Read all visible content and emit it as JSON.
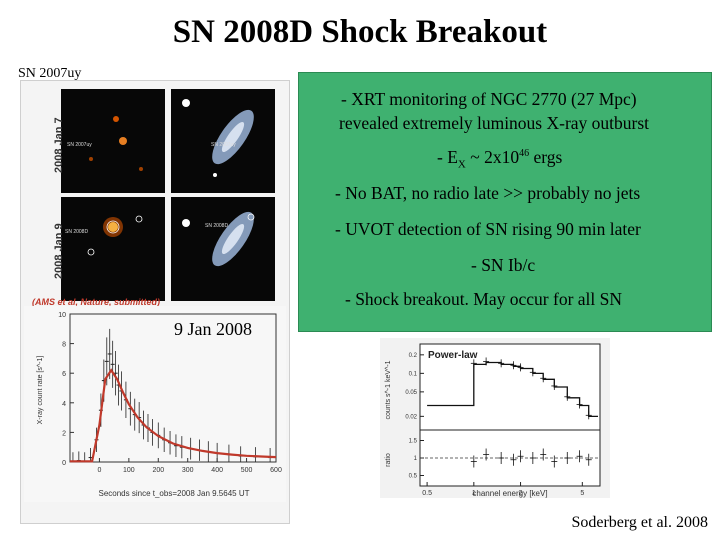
{
  "slide": {
    "title": "SN 2008D Shock Breakout",
    "sn_label": "SN 2007uy",
    "date_label": "9 Jan 2008",
    "citation": "Soderberg et al. 2008"
  },
  "images": {
    "row1_date": "2008 Jan 7",
    "row2_date": "2008 Jan 9",
    "row1_left_label": "SN 2007uy",
    "row1_right_label": "SN 2007uy",
    "row2_left_label": "SN 2008D",
    "row2_right_label": "SN 2008D",
    "credit": "(AMS et al, Nature, submitted)"
  },
  "bullets": {
    "b1_line1": "- XRT monitoring of NGC 2770 (27 Mpc)",
    "b1_line2": "revealed extremely luminous X-ray outburst",
    "b2_prefix": "- E",
    "b2_sub": "X",
    "b2_mid": " ~ 2x10",
    "b2_sup": "46",
    "b2_suffix": " ergs",
    "b3": "- No BAT, no radio late >> probably no jets",
    "b4": "- UVOT detection of SN rising 90 min later",
    "b5": "- SN Ib/c",
    "b6": "- Shock breakout.  May occur for all SN"
  },
  "chart_data": [
    {
      "type": "line",
      "xlabel": "Seconds since t_obs=2008 Jan 9.5645 UT",
      "ylabel": "X-ray count rate [s^-1]",
      "xlim": [
        -100,
        600
      ],
      "ylim": [
        0,
        10
      ],
      "xticks": [
        0,
        100,
        200,
        300,
        400,
        500,
        600
      ],
      "yticks": [
        0,
        2,
        4,
        6,
        8,
        10
      ],
      "colors": {
        "data": "#222222",
        "model": "#c0392b"
      },
      "series": [
        {
          "points": [
            [
              -90,
              0.05
            ],
            [
              -70,
              0.1
            ],
            [
              -50,
              0.05
            ],
            [
              -30,
              0.3
            ],
            [
              -10,
              1.5
            ],
            [
              5,
              3.5
            ],
            [
              15,
              5.5
            ],
            [
              25,
              6.8
            ],
            [
              35,
              7.3
            ],
            [
              45,
              6.6
            ],
            [
              55,
              6.0
            ],
            [
              65,
              5.2
            ],
            [
              75,
              4.8
            ],
            [
              90,
              4.2
            ],
            [
              105,
              3.6
            ],
            [
              120,
              3.2
            ],
            [
              135,
              3.0
            ],
            [
              150,
              2.5
            ],
            [
              165,
              2.3
            ],
            [
              180,
              2.0
            ],
            [
              200,
              1.8
            ],
            [
              220,
              1.5
            ],
            [
              240,
              1.3
            ],
            [
              260,
              1.1
            ],
            [
              280,
              1.0
            ],
            [
              310,
              0.9
            ],
            [
              340,
              0.8
            ],
            [
              370,
              0.7
            ],
            [
              400,
              0.6
            ],
            [
              440,
              0.5
            ],
            [
              480,
              0.4
            ],
            [
              530,
              0.35
            ],
            [
              580,
              0.3
            ]
          ]
        },
        {
          "points": [
            [
              -100,
              0.05
            ],
            [
              -25,
              0.05
            ],
            [
              0,
              2.5
            ],
            [
              20,
              5.6
            ],
            [
              40,
              6.2
            ],
            [
              60,
              5.6
            ],
            [
              80,
              4.7
            ],
            [
              100,
              3.9
            ],
            [
              130,
              3.0
            ],
            [
              160,
              2.35
            ],
            [
              200,
              1.75
            ],
            [
              250,
              1.25
            ],
            [
              300,
              0.95
            ],
            [
              350,
              0.75
            ],
            [
              400,
              0.6
            ],
            [
              450,
              0.5
            ],
            [
              500,
              0.42
            ],
            [
              550,
              0.37
            ],
            [
              600,
              0.33
            ]
          ]
        }
      ]
    },
    {
      "type": "line",
      "title": "Power-law",
      "xlabel": "channel energy [keV]",
      "ylabel_top": "counts s^-1 keV^-1",
      "ylabel_bottom": "ratio",
      "xticks": [
        0.5,
        1,
        2,
        5
      ],
      "yticks_top": [
        0.02,
        0.05,
        0.1,
        0.2
      ],
      "yticks_bottom": [
        0.5,
        1,
        1.5
      ],
      "series": [
        {
          "x": [
            0.5,
            0.8,
            1.0,
            1.2,
            1.5,
            1.8,
            2.0,
            2.4,
            2.8,
            3.3,
            4.0,
            4.8,
            5.5
          ],
          "y": [
            0.03,
            0.03,
            0.14,
            0.15,
            0.14,
            0.13,
            0.12,
            0.1,
            0.08,
            0.06,
            0.04,
            0.03,
            0.02
          ]
        }
      ],
      "ratio": {
        "x": [
          1.0,
          1.2,
          1.5,
          1.8,
          2.0,
          2.4,
          2.8,
          3.3,
          4.0,
          4.8,
          5.5
        ],
        "y": [
          0.9,
          1.1,
          1.0,
          0.95,
          1.05,
          1.0,
          1.1,
          0.9,
          1.0,
          1.05,
          0.95
        ]
      }
    }
  ]
}
